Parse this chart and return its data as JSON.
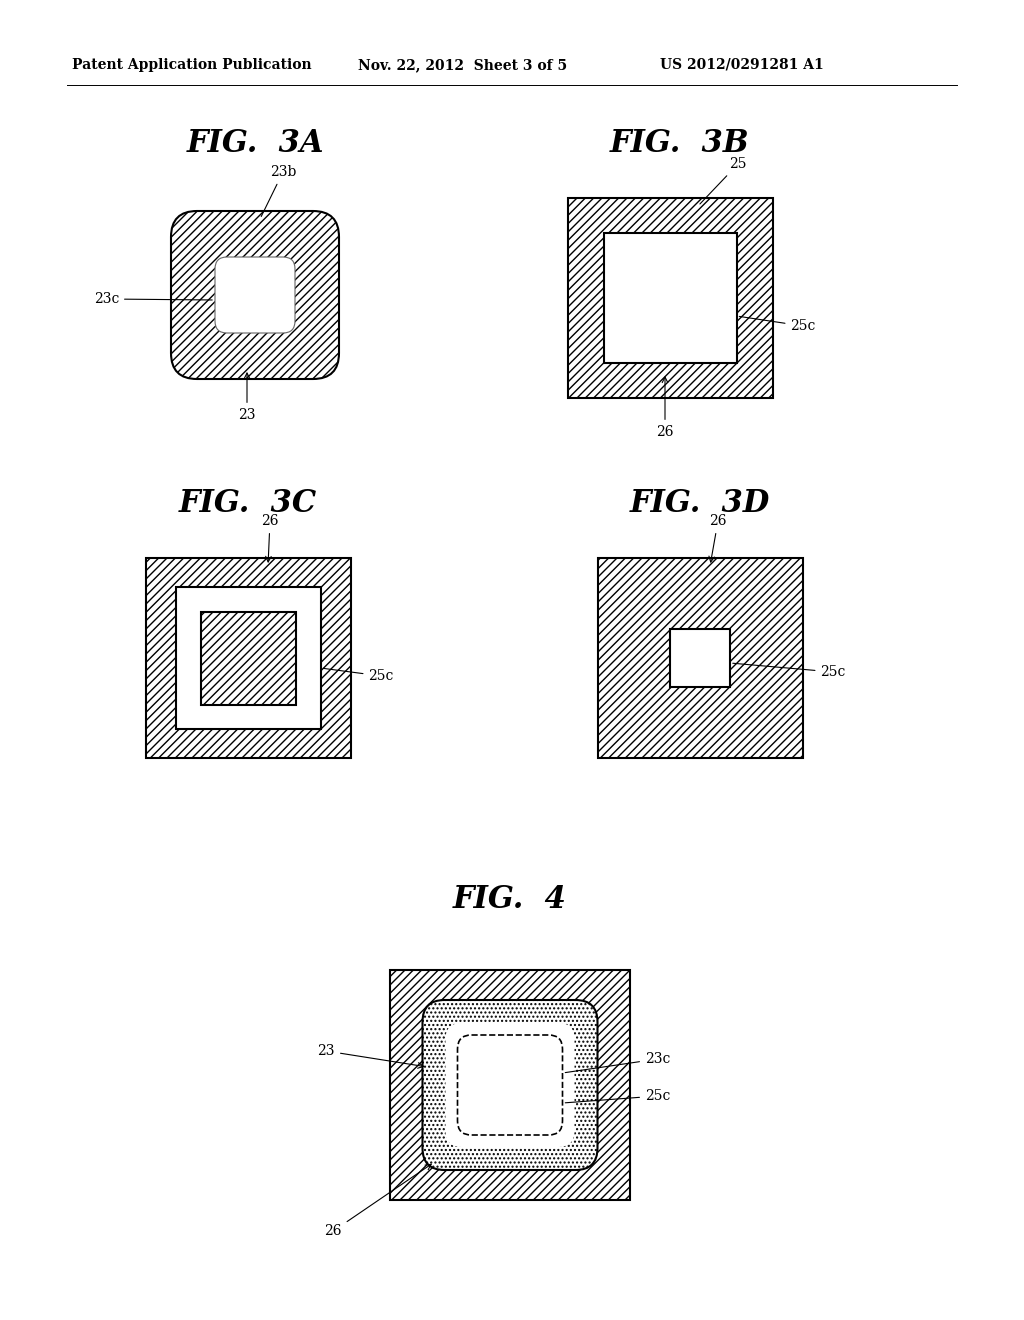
{
  "bg_color": "#ffffff",
  "header_text": "Patent Application Publication",
  "header_date": "Nov. 22, 2012  Sheet 3 of 5",
  "header_patent": "US 2012/0291281 A1",
  "fig3a_title": "FIG.  3A",
  "fig3b_title": "FIG.  3B",
  "fig3c_title": "FIG.  3C",
  "fig3d_title": "FIG.  3D",
  "fig4_title": "FIG.  4",
  "label_fontsize": 10,
  "title_fontsize": 22,
  "hatch_gray": "#c8c8c8",
  "hatch_color": "#555555"
}
